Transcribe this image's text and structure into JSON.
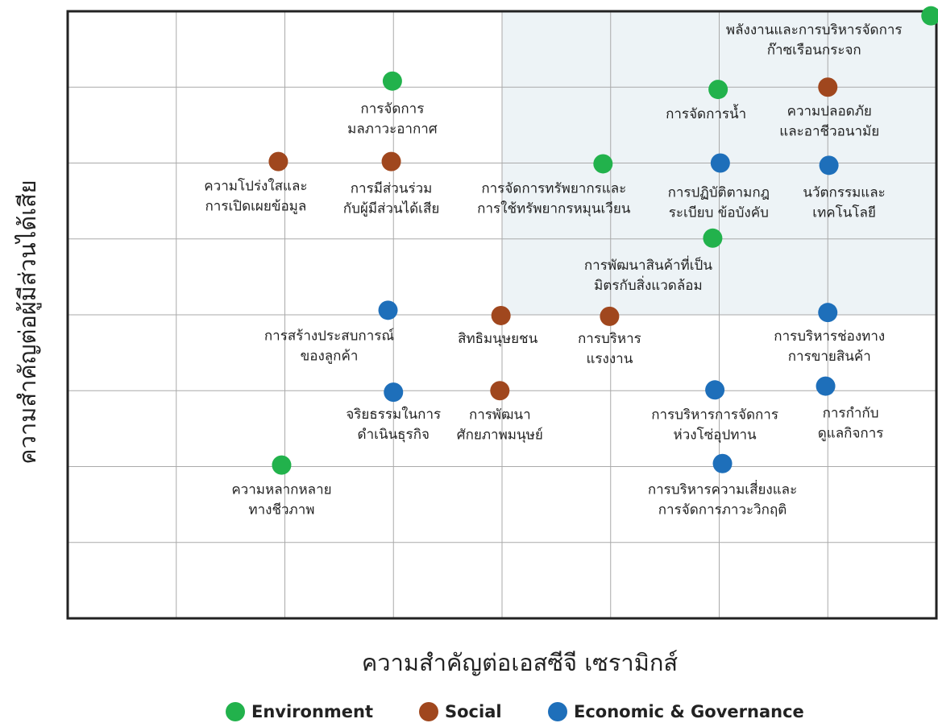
{
  "chart_data": {
    "type": "scatter",
    "x_label": "ความสำคัญต่อเอสซีจี เซรามิกส์",
    "y_label": "ความสำคัญต่อผู้มีส่วนได้เสีย",
    "xlim": [
      0,
      8
    ],
    "ylim": [
      0,
      8
    ],
    "xticks": [
      1,
      2,
      3,
      4,
      5,
      6,
      7
    ],
    "yticks": [
      1,
      2,
      3,
      4,
      5,
      6,
      7
    ],
    "grid": true,
    "legend": "bottom",
    "highlight": {
      "x": [
        4,
        8
      ],
      "y": [
        4,
        8
      ],
      "color": "#edf3f6"
    },
    "series": [
      {
        "name": "Environment",
        "color": "#22b24c",
        "x": [
          7.95,
          2.99,
          5.99,
          4.93,
          5.94,
          1.97
        ],
        "y": [
          7.94,
          7.08,
          6.97,
          5.99,
          5.01,
          2.02
        ],
        "labels": [
          [
            "พลังงานและการบริหารจัดการ",
            "ก๊าซเรือนกระจก"
          ],
          [
            "การจัดการ",
            "มลภาวะอากาศ"
          ],
          [
            "การจัดการน้ำ"
          ],
          [
            "การจัดการทรัพยากรและ",
            "การใช้ทรัพยากรหมุนเวียน"
          ],
          [
            "การพัฒนาสินค้าที่เป็น",
            "มิตรกับสิ่งแวดล้อม"
          ],
          [
            "ความหลากหลาย",
            "ทางชีวภาพ"
          ]
        ]
      },
      {
        "name": "Social",
        "color": "#a0471e",
        "x": [
          7.0,
          1.94,
          2.98,
          3.99,
          4.99,
          3.98
        ],
        "y": [
          7.0,
          6.02,
          6.02,
          3.99,
          3.98,
          3.0
        ],
        "labels": [
          [
            "ความปลอดภัย",
            "และอาชีวอนามัย"
          ],
          [
            "ความโปร่งใสและ",
            "การเปิดเผยข้อมูล"
          ],
          [
            "การมีส่วนร่วม",
            "กับผู้มีส่วนได้เสีย"
          ],
          [
            "สิทธิมนุษยชน"
          ],
          [
            "การบริหาร",
            "แรงงาน"
          ],
          [
            "การพัฒนา",
            "ศักยภาพมนุษย์"
          ]
        ]
      },
      {
        "name": "Economic & Governance",
        "color": "#1e6fba",
        "x": [
          6.01,
          7.01,
          2.95,
          7.0,
          3.0,
          5.96,
          6.98,
          6.03
        ],
        "y": [
          6.0,
          5.97,
          4.06,
          4.03,
          2.98,
          3.01,
          3.06,
          2.04
        ],
        "labels": [
          [
            "การปฏิบัติตามกฎ",
            "ระเบียบ ข้อบังคับ"
          ],
          [
            "นวัตกรรมและ",
            "เทคโนโลยี"
          ],
          [
            "การสร้างประสบการณ์",
            "ของลูกค้า"
          ],
          [
            "การบริหารช่องทาง",
            "การขายสินค้า"
          ],
          [
            "จริยธรรมในการ",
            "ดำเนินธุรกิจ"
          ],
          [
            "การบริหารการจัดการ",
            "ห่วงโซ่อุปทาน"
          ],
          [
            "การกำกับ",
            "ดูแลกิจการ"
          ],
          [
            "การบริหารความเสี่ยงและ",
            "การจัดการภาวะวิกฤติ"
          ]
        ]
      }
    ]
  }
}
